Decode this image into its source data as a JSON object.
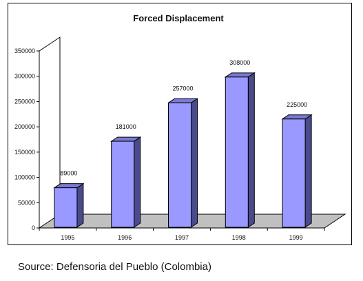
{
  "caption": "Source: Defensoria del Pueblo (Colombia)",
  "chart_data": {
    "type": "bar",
    "title": "Forced Displacement",
    "xlabel": "",
    "ylabel": "",
    "categories": [
      "1995",
      "1996",
      "1997",
      "1998",
      "1999"
    ],
    "values": [
      89000,
      181000,
      257000,
      308000,
      225000
    ],
    "data_labels": [
      "89000",
      "181000",
      "257000",
      "308000",
      "225000"
    ],
    "ylim": [
      0,
      350000
    ],
    "yticks": [
      0,
      50000,
      100000,
      150000,
      200000,
      250000,
      300000,
      350000
    ],
    "ytick_labels": [
      "0",
      "50000",
      "100000",
      "150000",
      "200000",
      "250000",
      "300000",
      "350000"
    ],
    "grid": false,
    "legend": "none",
    "three_d": true,
    "colors": {
      "bar_front": "#9999ff",
      "bar_side": "#4a4a8f",
      "bar_top": "#7a7ad6",
      "floor": "#c0c0c0",
      "axis": "#000000"
    }
  }
}
